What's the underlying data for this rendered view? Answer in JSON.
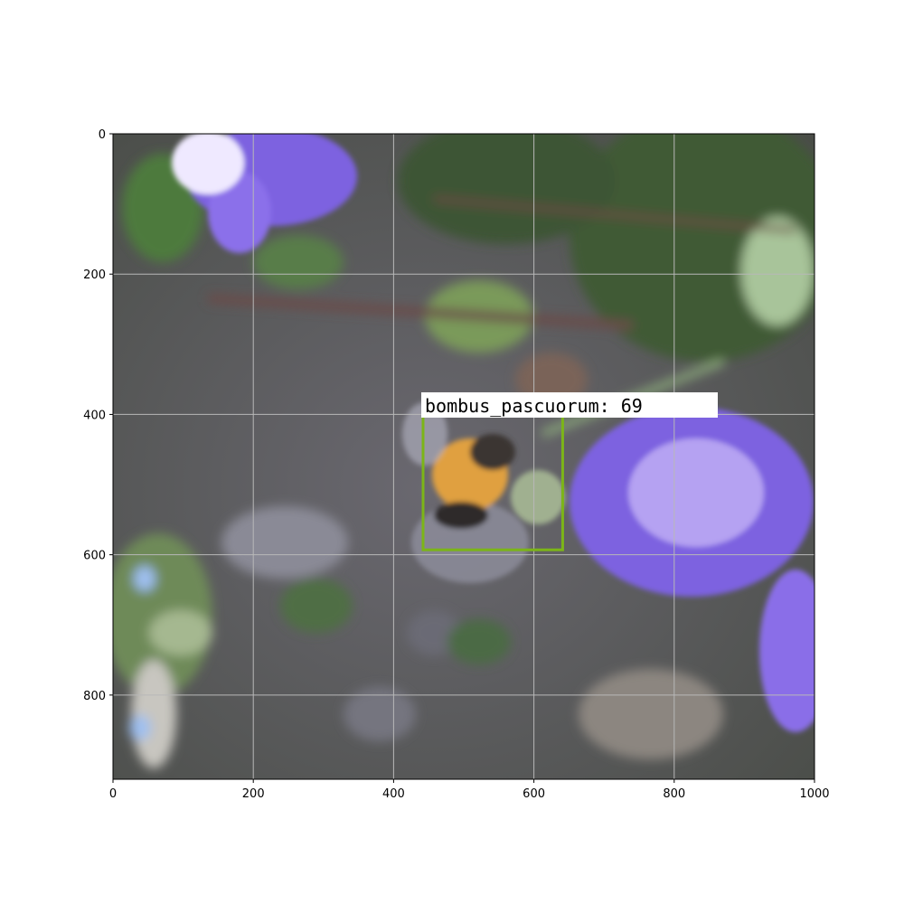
{
  "image": {
    "width": 1000,
    "height": 920,
    "scene": "bumblebee-on-purple-scabious-flower"
  },
  "axes": {
    "x_ticks": [
      0,
      200,
      400,
      600,
      800,
      1000
    ],
    "y_ticks": [
      0,
      200,
      400,
      600,
      800
    ],
    "grid": true,
    "grid_color": "#b8b8b8"
  },
  "detection": {
    "label": "bombus_pascuorum: 69",
    "box": {
      "x_min": 442,
      "y_min": 402,
      "x_max": 641,
      "y_max": 593
    },
    "box_color": "#7cb518",
    "label_background": "#ffffff"
  },
  "colors": {
    "flower": "#7d62e0",
    "foliage": "#4d6b3e",
    "ground": "#5c5a66",
    "bee_body": "#e0a040"
  }
}
